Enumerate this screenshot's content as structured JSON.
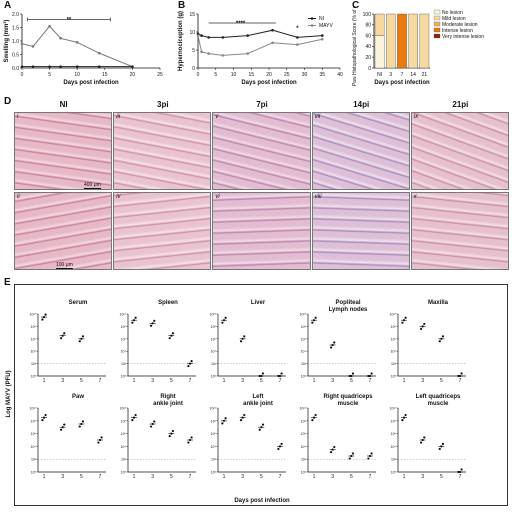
{
  "panels": {
    "A": {
      "letter": "A"
    },
    "B": {
      "letter": "B"
    },
    "C": {
      "letter": "C"
    },
    "D": {
      "letter": "D"
    },
    "E": {
      "letter": "E"
    }
  },
  "chart_data": [
    {
      "id": "A",
      "type": "line",
      "xlabel": "Days post infection",
      "ylabel": "Swelling (mm³)",
      "xlim": [
        0,
        25
      ],
      "ylim": [
        0,
        2
      ],
      "xticks": [
        "0",
        "5",
        "10",
        "15",
        "20",
        "25"
      ],
      "yticks": [
        "0.0",
        "0.5",
        "1.0",
        "1.5",
        "2.0"
      ],
      "annotation": "**",
      "series": [
        {
          "name": "",
          "color": "#777777",
          "x": [
            0,
            2,
            5,
            7,
            10,
            14,
            20
          ],
          "y": [
            0.9,
            0.8,
            1.55,
            1.1,
            0.95,
            0.55,
            0.05
          ]
        },
        {
          "name": "",
          "color": "#222222",
          "x": [
            0,
            2,
            5,
            7,
            10,
            14,
            20
          ],
          "y": [
            0.05,
            0.05,
            0.05,
            0.05,
            0.05,
            0.05,
            0.05
          ]
        }
      ]
    },
    {
      "id": "B",
      "type": "line",
      "xlabel": "Days post infection",
      "ylabel": "Hypernociception (g)",
      "xlim": [
        0,
        40
      ],
      "ylim": [
        0,
        15
      ],
      "xticks": [
        "0",
        "5",
        "10",
        "15",
        "20",
        "25",
        "30",
        "35",
        "40"
      ],
      "yticks": [
        "0",
        "5",
        "10",
        "15"
      ],
      "annotations": [
        "****",
        "*"
      ],
      "legend": [
        "NI",
        "MAYV"
      ],
      "series": [
        {
          "name": "NI",
          "color": "#222222",
          "x": [
            0,
            1,
            3,
            7,
            14,
            21,
            28,
            35
          ],
          "y": [
            9.5,
            9,
            8.5,
            8.5,
            9,
            10.5,
            8.5,
            9
          ]
        },
        {
          "name": "MAYV",
          "color": "#888888",
          "x": [
            0,
            1,
            3,
            7,
            14,
            21,
            28,
            35
          ],
          "y": [
            9,
            4.5,
            4,
            3.5,
            4,
            7,
            6.5,
            8
          ]
        }
      ]
    },
    {
      "id": "C",
      "type": "bar",
      "xlabel": "Days post infection",
      "ylabel": "Paw Histopathological Score (% of mice)",
      "categories": [
        "NI",
        "3",
        "7",
        "14",
        "21"
      ],
      "yticks": [
        "0",
        "20",
        "40",
        "60",
        "80",
        "100"
      ],
      "legend": [
        "No lesion",
        "Mild lesion",
        "Moderate lesion",
        "Intense lesion",
        "Very intense lesion"
      ],
      "legend_colors": [
        "#fbf3dc",
        "#f5d9a0",
        "#f0b060",
        "#e87a10",
        "#8a2a0a"
      ],
      "stacks": [
        [
          60,
          40,
          0,
          0,
          0
        ],
        [
          0,
          100,
          0,
          0,
          0
        ],
        [
          0,
          0,
          0,
          100,
          0
        ],
        [
          0,
          100,
          0,
          0,
          0
        ],
        [
          0,
          100,
          0,
          0,
          0
        ]
      ]
    }
  ],
  "histology": {
    "columns": [
      "NI",
      "3pi",
      "7pi",
      "14pi",
      "21pi"
    ],
    "top_labels": [
      "i",
      "iii",
      "v",
      "vii",
      "ix"
    ],
    "bottom_labels": [
      "ii",
      "iv",
      "vi",
      "viii",
      "x"
    ],
    "scale_top": "400 μm",
    "scale_bottom": "100 μm"
  },
  "panel_e": {
    "ylabel": "Log MAYV (PFU)",
    "xlabel": "Days post infection",
    "xticks": [
      "1",
      "3",
      "5",
      "7"
    ],
    "yticks": [
      "10¹⁰",
      "10⁸",
      "10⁶",
      "10⁴",
      "10²",
      "10⁰"
    ],
    "subplots": [
      {
        "title": [
          "Serum"
        ],
        "means": [
          9.5,
          6.5,
          6.0,
          null
        ]
      },
      {
        "title": [
          "Spleen"
        ],
        "means": [
          9.0,
          8.5,
          6.5,
          2.0
        ]
      },
      {
        "title": [
          "Liver"
        ],
        "means": [
          9.0,
          6.0,
          0,
          0
        ]
      },
      {
        "title": [
          "Popliteal",
          "Lymph nodes"
        ],
        "means": [
          9.0,
          5.0,
          0,
          0
        ]
      },
      {
        "title": [
          "Maxilla"
        ],
        "means": [
          9.0,
          8.0,
          6.0,
          0
        ]
      },
      {
        "title": [
          "Paw"
        ],
        "means": [
          8.5,
          7.0,
          7.5,
          5.0
        ]
      },
      {
        "title": [
          "Right",
          "ankle joint"
        ],
        "means": [
          8.5,
          7.5,
          6.0,
          5.0
        ]
      },
      {
        "title": [
          "Left",
          "ankle joint"
        ],
        "means": [
          8.0,
          8.5,
          7.0,
          4.0
        ]
      },
      {
        "title": [
          "Right quadriceps",
          "muscle"
        ],
        "means": [
          8.5,
          3.5,
          2.5,
          2.5
        ]
      },
      {
        "title": [
          "Left quadriceps",
          "muscle"
        ],
        "means": [
          8.5,
          5.0,
          4.0,
          0
        ]
      }
    ]
  }
}
